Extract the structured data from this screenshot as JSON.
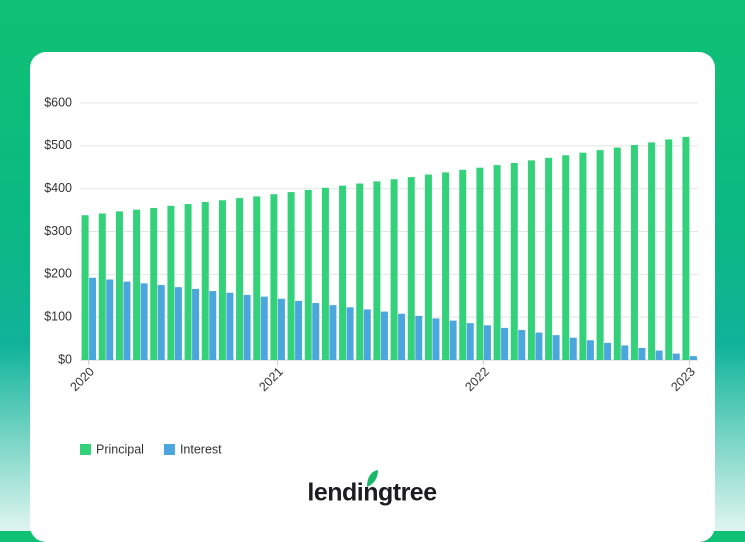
{
  "chart_data": {
    "type": "bar",
    "categories": [
      "2020",
      null,
      null,
      null,
      null,
      null,
      null,
      null,
      null,
      null,
      null,
      "2021",
      null,
      null,
      null,
      null,
      null,
      null,
      null,
      null,
      null,
      null,
      null,
      "2022",
      null,
      null,
      null,
      null,
      null,
      null,
      null,
      null,
      null,
      null,
      null,
      "2023"
    ],
    "series": [
      {
        "name": "Principal",
        "color": "#33d17a",
        "values": [
          338,
          342,
          347,
          351,
          355,
          360,
          364,
          369,
          373,
          378,
          382,
          387,
          392,
          397,
          402,
          407,
          412,
          417,
          422,
          427,
          433,
          438,
          444,
          449,
          455,
          460,
          466,
          472,
          478,
          484,
          490,
          496,
          502,
          508,
          515,
          521
        ]
      },
      {
        "name": "Interest",
        "color": "#4ba6dd",
        "values": [
          192,
          188,
          183,
          179,
          175,
          170,
          166,
          161,
          157,
          152,
          148,
          143,
          138,
          133,
          128,
          123,
          118,
          113,
          108,
          103,
          97,
          92,
          86,
          81,
          75,
          70,
          64,
          58,
          52,
          46,
          40,
          34,
          28,
          22,
          15,
          9
        ]
      }
    ],
    "ylim": [
      0,
      600
    ],
    "yticks": [
      {
        "value": 0,
        "label": "$0"
      },
      {
        "value": 100,
        "label": "$100"
      },
      {
        "value": 200,
        "label": "$200"
      },
      {
        "value": 300,
        "label": "$300"
      },
      {
        "value": 400,
        "label": "$400"
      },
      {
        "value": 500,
        "label": "$500"
      },
      {
        "value": 600,
        "label": "$600"
      }
    ],
    "grid": true,
    "legend": "bottom-left"
  },
  "brand": "lendingtree"
}
